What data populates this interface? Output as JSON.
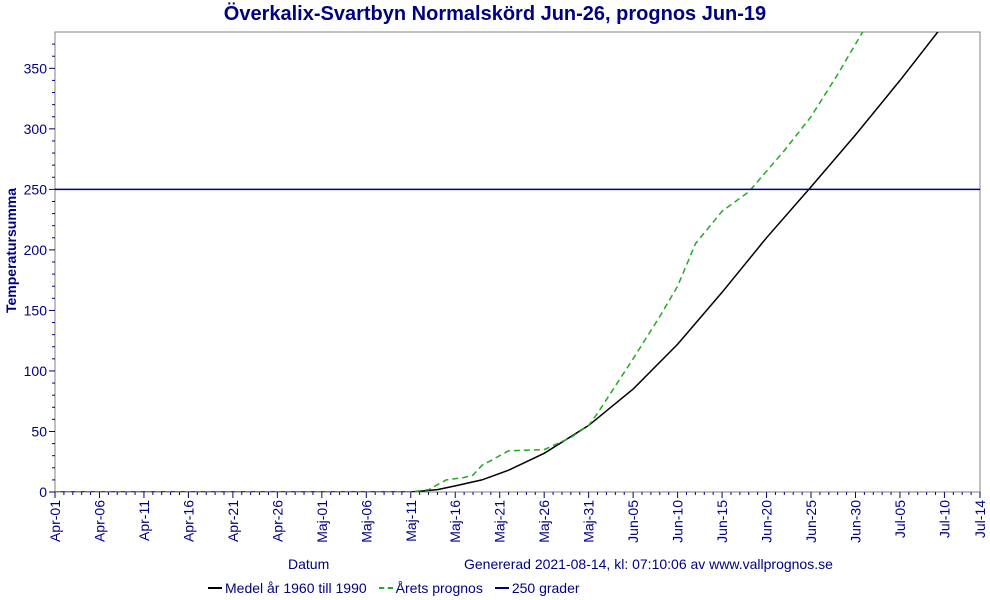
{
  "chart_data": {
    "type": "line",
    "title": "Överkalix-Svartbyn Normalskörd Jun-26, prognos Jun-19",
    "xlabel": "Datum",
    "ylabel": "Temperatursumma",
    "footer_text": "Genererad 2021-08-14, kl: 07:10:06 av www.vallprognos.se",
    "x_tick_labels": [
      "Apr-01",
      "Apr-06",
      "Apr-11",
      "Apr-16",
      "Apr-21",
      "Apr-26",
      "Maj-01",
      "Maj-06",
      "Maj-11",
      "Maj-16",
      "Maj-21",
      "Maj-26",
      "Maj-31",
      "Jun-05",
      "Jun-10",
      "Jun-15",
      "Jun-20",
      "Jun-25",
      "Jun-30",
      "Jul-05",
      "Jul-10",
      "Jul-14"
    ],
    "y_ticks": [
      0,
      50,
      100,
      150,
      200,
      250,
      300,
      350
    ],
    "ylim": [
      0,
      380
    ],
    "grid": false,
    "legend_position": "bottom",
    "series": [
      {
        "name": "Medel år 1960 till 1990",
        "color": "#000000",
        "style": "solid",
        "points": [
          [
            "2021-04-01",
            0
          ],
          [
            "2021-05-11",
            0
          ],
          [
            "2021-05-14",
            2
          ],
          [
            "2021-05-16",
            5
          ],
          [
            "2021-05-19",
            10
          ],
          [
            "2021-05-22",
            18
          ],
          [
            "2021-05-26",
            32
          ],
          [
            "2021-05-31",
            55
          ],
          [
            "2021-06-05",
            85
          ],
          [
            "2021-06-10",
            122
          ],
          [
            "2021-06-15",
            165
          ],
          [
            "2021-06-20",
            210
          ],
          [
            "2021-06-25",
            252
          ],
          [
            "2021-06-30",
            295
          ],
          [
            "2021-07-05",
            340
          ],
          [
            "2021-07-10",
            387
          ]
        ]
      },
      {
        "name": "Årets prognos",
        "color": "#22aa22",
        "style": "dashed",
        "points": [
          [
            "2021-04-01",
            0
          ],
          [
            "2021-05-11",
            0
          ],
          [
            "2021-05-13",
            2
          ],
          [
            "2021-05-15",
            10
          ],
          [
            "2021-05-17",
            12
          ],
          [
            "2021-05-18",
            14
          ],
          [
            "2021-05-19",
            22
          ],
          [
            "2021-05-22",
            34
          ],
          [
            "2021-05-26",
            35
          ],
          [
            "2021-05-29",
            45
          ],
          [
            "2021-05-31",
            55
          ],
          [
            "2021-06-01",
            65
          ],
          [
            "2021-06-05",
            110
          ],
          [
            "2021-06-08",
            145
          ],
          [
            "2021-06-10",
            170
          ],
          [
            "2021-06-12",
            205
          ],
          [
            "2021-06-15",
            232
          ],
          [
            "2021-06-18",
            248
          ],
          [
            "2021-06-20",
            265
          ],
          [
            "2021-06-22",
            282
          ],
          [
            "2021-06-25",
            310
          ],
          [
            "2021-06-28",
            345
          ],
          [
            "2021-06-30",
            370
          ],
          [
            "2021-07-02",
            395
          ]
        ]
      },
      {
        "name": "250 grader",
        "color": "#000080",
        "style": "solid",
        "points": [
          [
            "2021-04-01",
            250
          ],
          [
            "2021-07-14",
            250
          ]
        ]
      }
    ]
  }
}
